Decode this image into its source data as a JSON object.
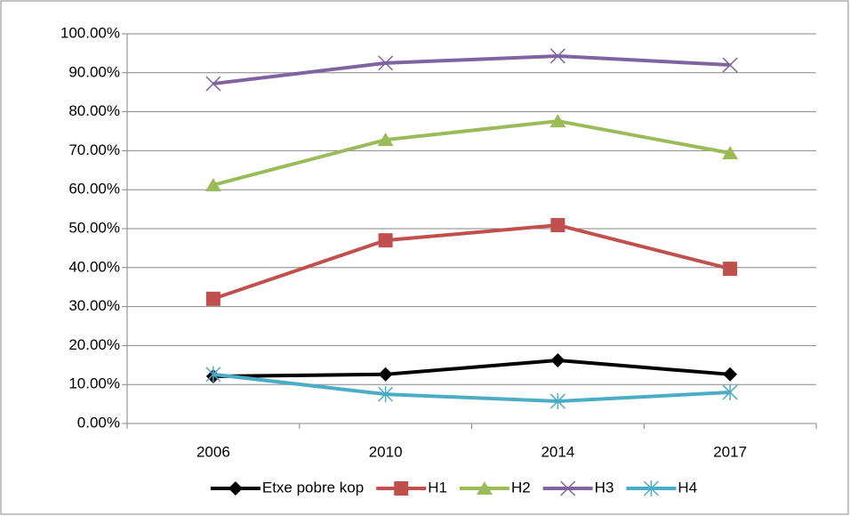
{
  "chart_data": {
    "type": "line",
    "categories": [
      "2006",
      "2010",
      "2014",
      "2017"
    ],
    "series": [
      {
        "name": "Etxe pobre kop",
        "color": "#000000",
        "marker": "diamond",
        "values": [
          12.1,
          12.6,
          16.2,
          12.6
        ]
      },
      {
        "name": "H1",
        "color": "#c0504d",
        "marker": "square",
        "values": [
          32.0,
          47.0,
          50.9,
          39.7
        ]
      },
      {
        "name": "H2",
        "color": "#9bbb59",
        "marker": "triangle",
        "values": [
          61.2,
          72.8,
          77.6,
          69.4
        ]
      },
      {
        "name": "H3",
        "color": "#8064a2",
        "marker": "x",
        "values": [
          87.2,
          92.5,
          94.3,
          92.0
        ]
      },
      {
        "name": "H4",
        "color": "#4bacc6",
        "marker": "star",
        "values": [
          12.6,
          7.5,
          5.7,
          8.0
        ]
      }
    ],
    "ylim": [
      0,
      100
    ],
    "yticks": [
      {
        "value": 0,
        "label": "0.00%"
      },
      {
        "value": 10,
        "label": "10.00%"
      },
      {
        "value": 20,
        "label": "20.00%"
      },
      {
        "value": 30,
        "label": "30.00%"
      },
      {
        "value": 40,
        "label": "40.00%"
      },
      {
        "value": 50,
        "label": "50.00%"
      },
      {
        "value": 60,
        "label": "60.00%"
      },
      {
        "value": 70,
        "label": "70.00%"
      },
      {
        "value": 80,
        "label": "80.00%"
      },
      {
        "value": 90,
        "label": "90.00%"
      },
      {
        "value": 100,
        "label": "100.00%"
      }
    ],
    "grid": true,
    "legend": "bottom"
  }
}
